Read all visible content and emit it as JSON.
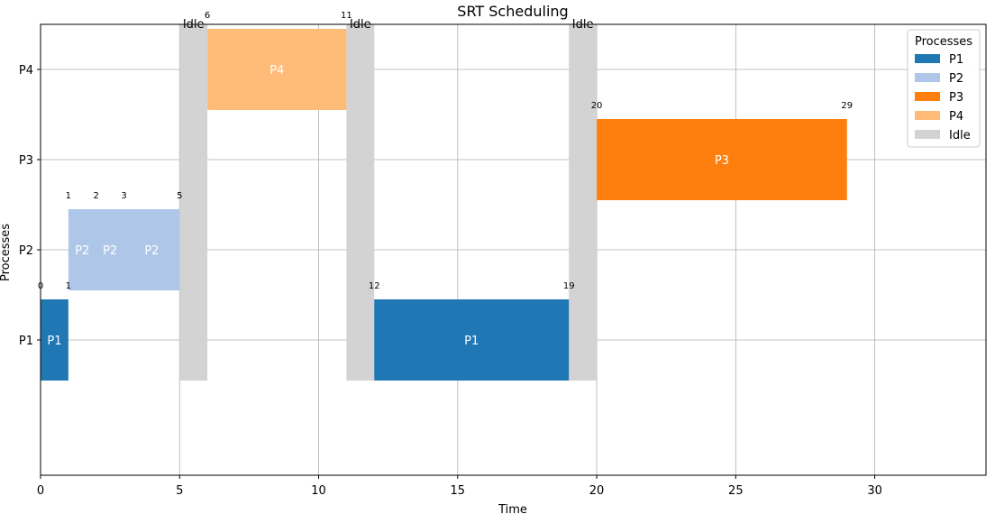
{
  "chart_data": {
    "type": "gantt",
    "title": "SRT Scheduling",
    "xlabel": "Time",
    "ylabel": "Processes",
    "xlim": [
      0,
      34
    ],
    "x_ticks": [
      0,
      5,
      10,
      15,
      20,
      25,
      30
    ],
    "categories": [
      "P1",
      "P2",
      "P3",
      "P4"
    ],
    "grid": true,
    "legend": {
      "title": "Processes",
      "position": "top-right",
      "entries": [
        {
          "label": "P1",
          "color": "#1f77b4"
        },
        {
          "label": "P2",
          "color": "#aec7e8"
        },
        {
          "label": "P3",
          "color": "#ff7f0e"
        },
        {
          "label": "P4",
          "color": "#ffbb78"
        },
        {
          "label": "Idle",
          "color": "#d3d3d3"
        }
      ]
    },
    "idle_blocks": [
      {
        "start": 5,
        "end": 6,
        "label": "Idle"
      },
      {
        "start": 11,
        "end": 12,
        "label": "Idle"
      },
      {
        "start": 19,
        "end": 20,
        "label": "Idle"
      }
    ],
    "bars": [
      {
        "process": "P1",
        "start": 0,
        "end": 1,
        "color": "#1f77b4",
        "label": "P1",
        "label_x": 0.5
      },
      {
        "process": "P2",
        "start": 1,
        "end": 5,
        "color": "#aec7e8"
      },
      {
        "process": "P4",
        "start": 6,
        "end": 11,
        "color": "#ffbb78",
        "label": "P4",
        "label_x": 8.5
      },
      {
        "process": "P1",
        "start": 12,
        "end": 19,
        "color": "#1f77b4",
        "label": "P1",
        "label_x": 15.5
      },
      {
        "process": "P3",
        "start": 20,
        "end": 29,
        "color": "#ff7f0e",
        "label": "P3",
        "label_x": 24.5
      }
    ],
    "extra_bar_labels": [
      {
        "process": "P2",
        "x": 1.5,
        "text": "P2"
      },
      {
        "process": "P2",
        "x": 2.5,
        "text": "P2"
      },
      {
        "process": "P2",
        "x": 4.0,
        "text": "P2"
      }
    ],
    "time_markers": [
      {
        "process": "P1",
        "x": 0,
        "text": "0"
      },
      {
        "process": "P1",
        "x": 1,
        "text": "1"
      },
      {
        "process": "P2",
        "x": 1,
        "text": "1"
      },
      {
        "process": "P2",
        "x": 2,
        "text": "2"
      },
      {
        "process": "P2",
        "x": 3,
        "text": "3"
      },
      {
        "process": "P2",
        "x": 5,
        "text": "5"
      },
      {
        "process": "P4",
        "x": 6,
        "text": "6"
      },
      {
        "process": "P4",
        "x": 11,
        "text": "11"
      },
      {
        "process": "P1",
        "x": 12,
        "text": "12"
      },
      {
        "process": "P1",
        "x": 19,
        "text": "19"
      },
      {
        "process": "P3",
        "x": 20,
        "text": "20"
      },
      {
        "process": "P3",
        "x": 29,
        "text": "29"
      }
    ]
  }
}
